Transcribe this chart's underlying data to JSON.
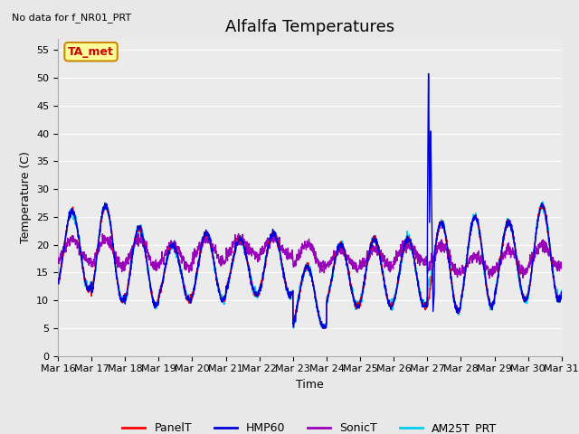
{
  "title": "Alfalfa Temperatures",
  "ylabel": "Temperature (C)",
  "xlabel": "Time",
  "no_data_text": "No data for f_NR01_PRT",
  "legend_box_text": "TA_met",
  "ylim": [
    0,
    57
  ],
  "yticks": [
    0,
    5,
    10,
    15,
    20,
    25,
    30,
    35,
    40,
    45,
    50,
    55
  ],
  "xtick_labels": [
    "Mar 16",
    "Mar 17",
    "Mar 18",
    "Mar 19",
    "Mar 20",
    "Mar 21",
    "Mar 22",
    "Mar 23",
    "Mar 24",
    "Mar 25",
    "Mar 26",
    "Mar 27",
    "Mar 28",
    "Mar 29",
    "Mar 30",
    "Mar 31"
  ],
  "colors": {
    "PanelT": "#ff0000",
    "HMP60": "#0000dd",
    "SonicT": "#9900bb",
    "AM25T_PRT": "#00ccee"
  },
  "line_widths": {
    "PanelT": 1.0,
    "HMP60": 1.0,
    "SonicT": 1.0,
    "AM25T_PRT": 1.2
  },
  "background_color": "#e8e8e8",
  "plot_bg_color": "#ebebeb",
  "grid_color": "#ffffff",
  "title_fontsize": 13,
  "axis_label_fontsize": 9,
  "tick_fontsize": 8
}
